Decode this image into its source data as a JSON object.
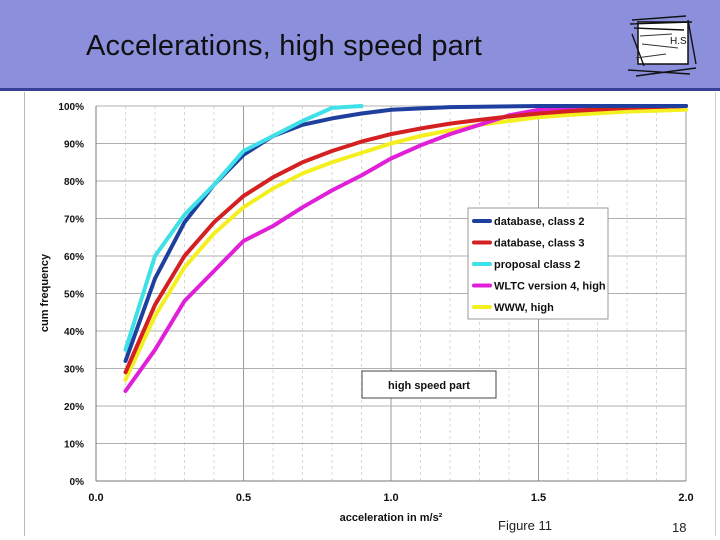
{
  "slide": {
    "title": "Accelerations, high speed part",
    "logo_text": "H.S",
    "figure_label": "Figure 11",
    "page_number": "18"
  },
  "chart_data": {
    "type": "line",
    "title": "",
    "xlabel": "acceleration in m/s²",
    "ylabel": "cum frequency",
    "xlim": [
      0,
      2
    ],
    "ylim": [
      0,
      100
    ],
    "x_ticks": [
      "0.0",
      "0.5",
      "1.0",
      "1.5",
      "2.0"
    ],
    "y_ticks": [
      "0%",
      "10%",
      "20%",
      "30%",
      "40%",
      "50%",
      "60%",
      "70%",
      "80%",
      "90%",
      "100%"
    ],
    "grid": true,
    "legend_position": "right-middle",
    "annotation": "high speed part",
    "series": [
      {
        "name": "database, class 2",
        "color": "#1f3f9f",
        "x": [
          0.1,
          0.2,
          0.3,
          0.4,
          0.5,
          0.6,
          0.7,
          0.8,
          0.9,
          1.0,
          1.2,
          1.5,
          2.0
        ],
        "y": [
          32,
          54,
          69,
          79,
          87,
          92,
          95,
          96.7,
          98,
          99,
          99.7,
          100,
          100
        ]
      },
      {
        "name": "database, class 3",
        "color": "#d42020",
        "x": [
          0.1,
          0.2,
          0.3,
          0.4,
          0.5,
          0.6,
          0.7,
          0.8,
          0.9,
          1.0,
          1.1,
          1.2,
          1.3,
          1.4,
          1.5,
          1.6,
          1.8,
          2.0
        ],
        "y": [
          29,
          47,
          60,
          69,
          76,
          81,
          85,
          88,
          90.5,
          92.5,
          94,
          95.3,
          96.3,
          97.2,
          98,
          98.6,
          99.5,
          100
        ]
      },
      {
        "name": "proposal class 2",
        "color": "#3fe0e8",
        "x": [
          0.1,
          0.2,
          0.3,
          0.4,
          0.5,
          0.6,
          0.7,
          0.8,
          0.9
        ],
        "y": [
          35,
          60,
          71,
          79,
          88,
          92,
          96,
          99.5,
          100
        ]
      },
      {
        "name": "WLTC version 4, high",
        "color": "#e020d8",
        "x": [
          0.1,
          0.2,
          0.3,
          0.4,
          0.5,
          0.6,
          0.7,
          0.8,
          0.9,
          1.0,
          1.1,
          1.2,
          1.3,
          1.4,
          1.5,
          2.0
        ],
        "y": [
          24,
          35,
          48,
          56,
          64,
          68,
          73,
          77.5,
          81.5,
          86,
          89.5,
          92.5,
          95,
          97.5,
          99,
          100
        ]
      },
      {
        "name": "WWW, high",
        "color": "#f4f020",
        "x": [
          0.1,
          0.2,
          0.3,
          0.4,
          0.5,
          0.6,
          0.7,
          0.8,
          0.9,
          1.0,
          1.1,
          1.2,
          1.3,
          1.4,
          1.5,
          1.6,
          1.8,
          2.0
        ],
        "y": [
          27,
          44,
          57,
          66,
          73,
          78,
          82,
          85,
          87.5,
          90,
          92,
          93.5,
          95,
          96,
          97,
          97.6,
          98.5,
          99
        ]
      }
    ]
  }
}
